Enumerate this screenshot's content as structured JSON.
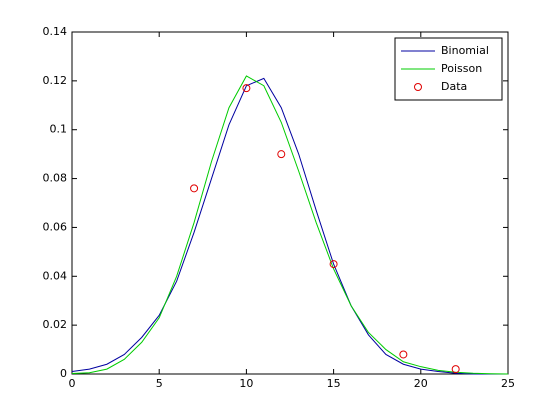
{
  "chart_data": {
    "type": "line",
    "x": [
      0,
      1,
      2,
      3,
      4,
      5,
      6,
      7,
      8,
      9,
      10,
      11,
      12,
      13,
      14,
      15,
      16,
      17,
      18,
      19,
      20,
      21,
      22,
      23,
      24,
      25
    ],
    "series": [
      {
        "name": "Binomial",
        "color": "#0000a0",
        "values": [
          0.001,
          0.002,
          0.004,
          0.008,
          0.015,
          0.024,
          0.038,
          0.058,
          0.08,
          0.102,
          0.118,
          0.121,
          0.109,
          0.09,
          0.067,
          0.045,
          0.028,
          0.016,
          0.008,
          0.004,
          0.002,
          0.001,
          0.0003,
          0,
          0,
          0
        ]
      },
      {
        "name": "Poisson",
        "color": "#00cc00",
        "values": [
          0.0002,
          0.0005,
          0.002,
          0.006,
          0.013,
          0.023,
          0.04,
          0.062,
          0.087,
          0.109,
          0.122,
          0.118,
          0.103,
          0.083,
          0.062,
          0.043,
          0.028,
          0.017,
          0.01,
          0.005,
          0.003,
          0.0015,
          0.0007,
          0.0003,
          0.0001,
          0
        ]
      },
      {
        "name": "Data",
        "type": "scatter",
        "color": "#e00000",
        "x": [
          7,
          10,
          12,
          15,
          19,
          22
        ],
        "values": [
          0.076,
          0.117,
          0.09,
          0.045,
          0.008,
          0.002
        ]
      }
    ],
    "xlim": [
      0,
      25
    ],
    "xticks": [
      0,
      5,
      10,
      15,
      20,
      25
    ],
    "ylim": [
      0,
      0.14
    ],
    "yticks": [
      0,
      0.02,
      0.04,
      0.06,
      0.08,
      0.1,
      0.12,
      0.14
    ],
    "grid": false,
    "legend": "upper right"
  }
}
